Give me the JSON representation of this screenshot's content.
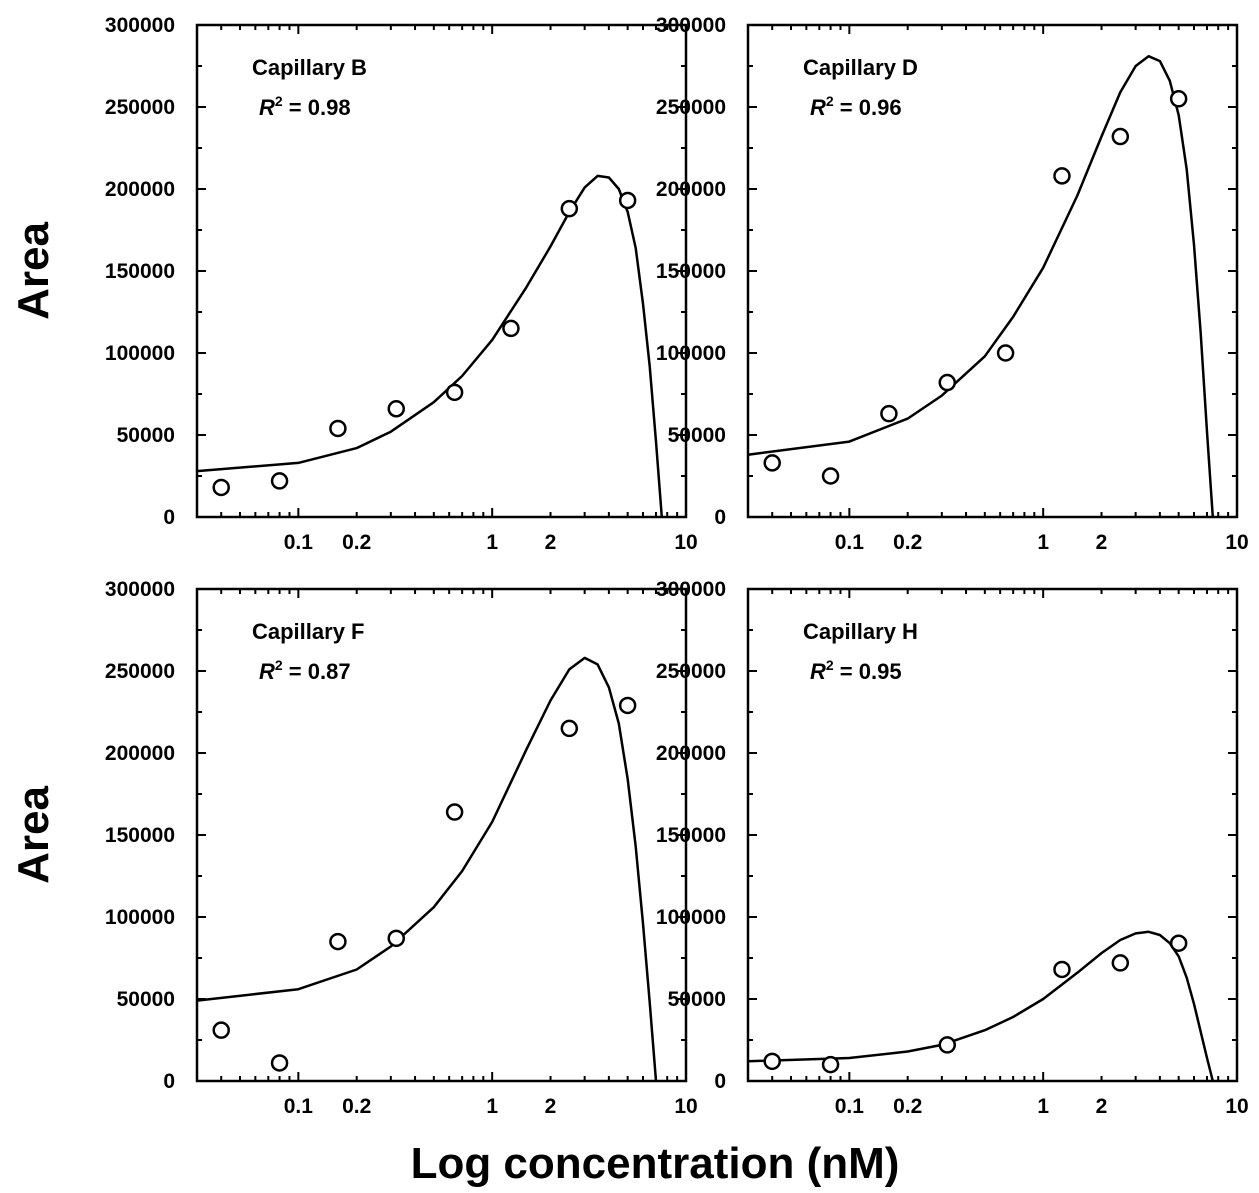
{
  "figure": {
    "ylabel": "Area",
    "xlabel": "Log concentration (nM)"
  },
  "chart_data": [
    {
      "type": "scatter",
      "title": "Capillary B",
      "r2_label": "R",
      "r2_sup": "2",
      "r2_text": " = 0.98",
      "x_scale": "log",
      "xlim": [
        0.03,
        10
      ],
      "ylim": [
        0,
        300000
      ],
      "x_tick_labels": [
        "0.1",
        "0.2",
        "1",
        "2",
        "10"
      ],
      "y_tick_labels": [
        "0",
        "50000",
        "100000",
        "150000",
        "200000",
        "250000",
        "300000"
      ],
      "points": {
        "x": [
          0.04,
          0.08,
          0.16,
          0.32,
          0.64,
          1.25,
          2.5,
          5
        ],
        "y": [
          18000,
          22000,
          54000,
          66000,
          76000,
          115000,
          188000,
          193000
        ]
      },
      "fit": {
        "x": [
          0.03,
          0.1,
          0.2,
          0.3,
          0.5,
          0.7,
          1.0,
          1.5,
          2.0,
          2.5,
          3.0,
          3.5,
          4.0,
          4.5,
          5.0,
          5.5,
          6.0,
          6.5,
          7.0,
          7.5
        ],
        "y": [
          28000,
          33000,
          42000,
          52000,
          70000,
          86000,
          108000,
          140000,
          165000,
          186000,
          201000,
          208000,
          207000,
          200000,
          186000,
          164000,
          130000,
          92000,
          46000,
          0
        ]
      }
    },
    {
      "type": "scatter",
      "title": "Capillary D",
      "r2_label": "R",
      "r2_sup": "2",
      "r2_text": " = 0.96",
      "x_scale": "log",
      "xlim": [
        0.03,
        10
      ],
      "ylim": [
        0,
        300000
      ],
      "x_tick_labels": [
        "0.1",
        "0.2",
        "1",
        "2",
        "10"
      ],
      "y_tick_labels": [
        "0",
        "50000",
        "100000",
        "150000",
        "200000",
        "250000",
        "300000"
      ],
      "points": {
        "x": [
          0.04,
          0.08,
          0.16,
          0.32,
          0.64,
          1.25,
          2.5,
          5
        ],
        "y": [
          33000,
          25000,
          63000,
          82000,
          100000,
          208000,
          232000,
          255000
        ]
      },
      "fit": {
        "x": [
          0.03,
          0.1,
          0.2,
          0.3,
          0.5,
          0.7,
          1.0,
          1.5,
          2.0,
          2.5,
          3.0,
          3.5,
          4.0,
          4.5,
          5.0,
          5.5,
          6.0,
          6.5,
          7.0,
          7.5
        ],
        "y": [
          38000,
          46000,
          60000,
          74000,
          98000,
          122000,
          152000,
          196000,
          232000,
          259000,
          275000,
          281000,
          278000,
          266000,
          245000,
          212000,
          166000,
          112000,
          52000,
          0
        ]
      }
    },
    {
      "type": "scatter",
      "title": "Capillary F",
      "r2_label": "R",
      "r2_sup": "2",
      "r2_text": " = 0.87",
      "x_scale": "log",
      "xlim": [
        0.03,
        10
      ],
      "ylim": [
        0,
        300000
      ],
      "x_tick_labels": [
        "0.1",
        "0.2",
        "1",
        "2",
        "10"
      ],
      "y_tick_labels": [
        "0",
        "50000",
        "100000",
        "150000",
        "200000",
        "250000",
        "300000"
      ],
      "points": {
        "x": [
          0.04,
          0.08,
          0.16,
          0.32,
          0.64,
          2.5,
          5
        ],
        "y": [
          31000,
          11000,
          85000,
          87000,
          164000,
          215000,
          229000
        ]
      },
      "fit": {
        "x": [
          0.03,
          0.1,
          0.2,
          0.3,
          0.5,
          0.7,
          1.0,
          1.5,
          2.0,
          2.5,
          3.0,
          3.5,
          4.0,
          4.5,
          5.0,
          5.5,
          6.0,
          6.5,
          7.0
        ],
        "y": [
          49000,
          56000,
          68000,
          82000,
          106000,
          128000,
          158000,
          202000,
          232000,
          251000,
          258000,
          254000,
          240000,
          218000,
          184000,
          143000,
          96000,
          48000,
          0
        ]
      }
    },
    {
      "type": "scatter",
      "title": "Capillary H",
      "r2_label": "R",
      "r2_sup": "2",
      "r2_text": " = 0.95",
      "x_scale": "log",
      "xlim": [
        0.03,
        10
      ],
      "ylim": [
        0,
        300000
      ],
      "x_tick_labels": [
        "0.1",
        "0.2",
        "1",
        "2",
        "10"
      ],
      "y_tick_labels": [
        "0",
        "50000",
        "100000",
        "150000",
        "200000",
        "250000",
        "300000"
      ],
      "points": {
        "x": [
          0.04,
          0.08,
          0.32,
          1.25,
          2.5,
          5
        ],
        "y": [
          12000,
          10000,
          22000,
          68000,
          72000,
          84000
        ]
      },
      "fit": {
        "x": [
          0.03,
          0.1,
          0.2,
          0.3,
          0.5,
          0.7,
          1.0,
          1.5,
          2.0,
          2.5,
          3.0,
          3.5,
          4.0,
          4.5,
          5.0,
          5.5,
          6.0,
          6.5,
          7.0,
          7.5
        ],
        "y": [
          12000,
          14000,
          18000,
          22000,
          31000,
          39000,
          50000,
          66000,
          78000,
          86000,
          90000,
          91000,
          89000,
          84000,
          76000,
          63000,
          47000,
          30000,
          14000,
          0
        ]
      }
    }
  ],
  "colors": {
    "axis": "#000000",
    "marker": "#000000",
    "fit_line": "#000000",
    "background": "#ffffff"
  }
}
